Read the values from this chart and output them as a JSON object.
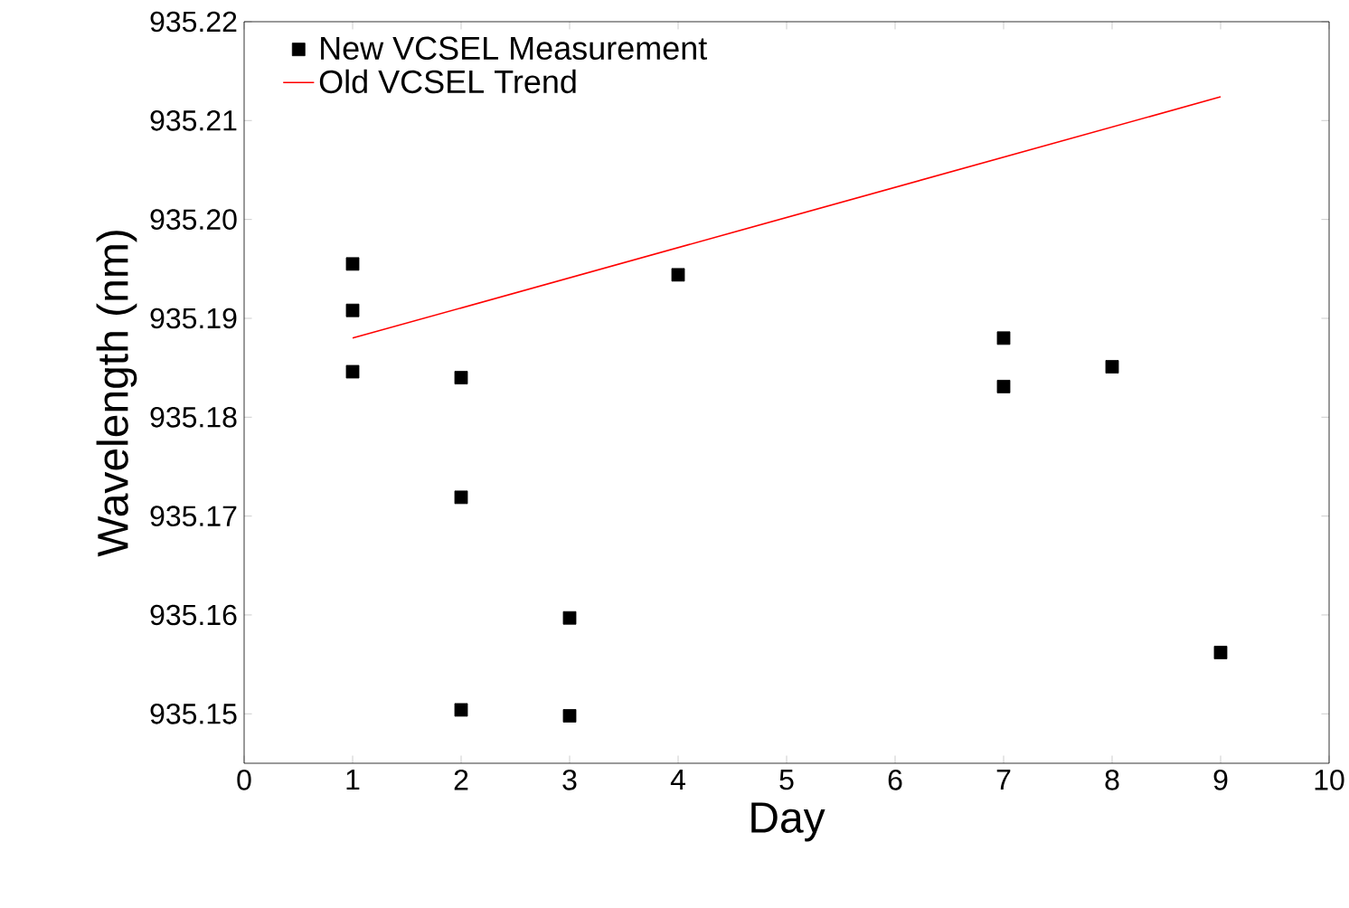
{
  "chart_data": {
    "type": "scatter",
    "xlabel": "Day",
    "ylabel": "Wavelength (nm)",
    "xlim": [
      0,
      10
    ],
    "ylim": [
      935.145,
      935.22
    ],
    "xticks": [
      0,
      1,
      2,
      3,
      4,
      5,
      6,
      7,
      8,
      9,
      10
    ],
    "yticks": [
      {
        "value": 935.15,
        "label": "935.15"
      },
      {
        "value": 935.16,
        "label": "935.16"
      },
      {
        "value": 935.17,
        "label": "935.17"
      },
      {
        "value": 935.18,
        "label": "935.18"
      },
      {
        "value": 935.19,
        "label": "935.19"
      },
      {
        "value": 935.2,
        "label": "935.20"
      },
      {
        "value": 935.21,
        "label": "935.21"
      },
      {
        "value": 935.22,
        "label": "935.22"
      }
    ],
    "legend": "top left",
    "grid": false,
    "series": [
      {
        "name": "New VCSEL Measurement",
        "marker": "square",
        "color": "#000000",
        "x": [
          1,
          1,
          1,
          2,
          2,
          2,
          3,
          3,
          4,
          7,
          7,
          8,
          9
        ],
        "values": [
          935.1955,
          935.1908,
          935.1846,
          935.184,
          935.1719,
          935.1504,
          935.1597,
          935.1498,
          935.1944,
          935.188,
          935.1831,
          935.1851,
          935.1562
        ]
      },
      {
        "name": "Old VCSEL Trend",
        "type": "line",
        "color": "#ff0000",
        "line_style": "solid",
        "x": [
          1,
          9
        ],
        "values": [
          935.188,
          935.2124
        ]
      }
    ]
  }
}
